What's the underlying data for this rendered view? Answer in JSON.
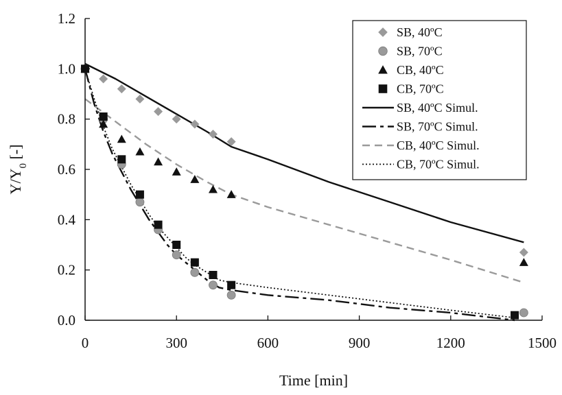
{
  "chart_data": {
    "type": "scatter",
    "xlabel": "Time [min]",
    "ylabel": "Y/Y",
    "ylabel_subscript": "0",
    "ylabel_suffix": " [-]",
    "xlim": [
      0,
      1500
    ],
    "ylim": [
      0,
      1.2
    ],
    "xticks": [
      "0",
      "300",
      "600",
      "900",
      "1200",
      "1500"
    ],
    "yticks": [
      "0.0",
      "0.2",
      "0.4",
      "0.6",
      "0.8",
      "1.0",
      "1.2"
    ],
    "grid": false,
    "legend_position": "top-right",
    "series": [
      {
        "name": "SB, 40ºC",
        "kind": "marker",
        "marker": "diamond",
        "color": "#9a9a9a",
        "x": [
          0,
          60,
          120,
          180,
          240,
          300,
          360,
          420,
          480,
          1440
        ],
        "y": [
          1.0,
          0.96,
          0.92,
          0.88,
          0.83,
          0.8,
          0.78,
          0.74,
          0.71,
          0.27
        ]
      },
      {
        "name": "SB, 70ºC",
        "kind": "marker",
        "marker": "circle",
        "color": "#9a9a9a",
        "x": [
          0,
          60,
          120,
          180,
          240,
          300,
          360,
          420,
          480,
          1440
        ],
        "y": [
          1.0,
          0.8,
          0.62,
          0.47,
          0.36,
          0.26,
          0.19,
          0.14,
          0.1,
          0.03
        ]
      },
      {
        "name": "CB, 40ºC",
        "kind": "marker",
        "marker": "triangle",
        "color": "#111111",
        "x": [
          0,
          60,
          120,
          180,
          240,
          300,
          360,
          420,
          480,
          1440
        ],
        "y": [
          1.0,
          0.78,
          0.72,
          0.67,
          0.63,
          0.59,
          0.56,
          0.52,
          0.5,
          0.23
        ]
      },
      {
        "name": "CB, 70ºC",
        "kind": "marker",
        "marker": "square",
        "color": "#111111",
        "x": [
          0,
          60,
          120,
          180,
          240,
          300,
          360,
          420,
          480,
          1410
        ],
        "y": [
          1.0,
          0.81,
          0.64,
          0.5,
          0.38,
          0.3,
          0.23,
          0.18,
          0.14,
          0.02
        ]
      },
      {
        "name": "SB, 40ºC Simul.",
        "kind": "line",
        "style": "solid",
        "color": "#111111",
        "x": [
          0,
          100,
          200,
          300,
          400,
          480,
          600,
          800,
          1000,
          1200,
          1440
        ],
        "y": [
          1.02,
          0.96,
          0.89,
          0.82,
          0.75,
          0.69,
          0.64,
          0.55,
          0.47,
          0.39,
          0.31
        ]
      },
      {
        "name": "SB, 70ºC Simul.",
        "kind": "line",
        "style": "dashdot",
        "color": "#111111",
        "x": [
          0,
          30,
          60,
          90,
          120,
          150,
          180,
          210,
          240,
          270,
          300,
          330,
          360,
          400,
          440,
          480,
          600,
          800,
          1000,
          1200,
          1410
        ],
        "y": [
          1.0,
          0.86,
          0.75,
          0.66,
          0.59,
          0.52,
          0.46,
          0.4,
          0.35,
          0.3,
          0.26,
          0.23,
          0.2,
          0.16,
          0.13,
          0.12,
          0.1,
          0.08,
          0.05,
          0.03,
          0.0
        ]
      },
      {
        "name": "CB, 40ºC Simul.",
        "kind": "line",
        "style": "dashed",
        "color": "#9a9a9a",
        "x": [
          0,
          100,
          200,
          300,
          400,
          480,
          600,
          800,
          1000,
          1200,
          1440
        ],
        "y": [
          0.88,
          0.79,
          0.7,
          0.62,
          0.55,
          0.5,
          0.45,
          0.38,
          0.31,
          0.24,
          0.15
        ]
      },
      {
        "name": "CB, 70ºC Simul.",
        "kind": "line",
        "style": "dotted",
        "color": "#111111",
        "x": [
          0,
          30,
          60,
          90,
          120,
          150,
          180,
          210,
          240,
          270,
          300,
          330,
          360,
          400,
          440,
          480,
          600,
          800,
          1000,
          1200,
          1410
        ],
        "y": [
          1.0,
          0.88,
          0.77,
          0.68,
          0.61,
          0.54,
          0.48,
          0.42,
          0.37,
          0.33,
          0.29,
          0.25,
          0.22,
          0.19,
          0.16,
          0.15,
          0.13,
          0.1,
          0.07,
          0.04,
          0.01
        ]
      }
    ]
  }
}
